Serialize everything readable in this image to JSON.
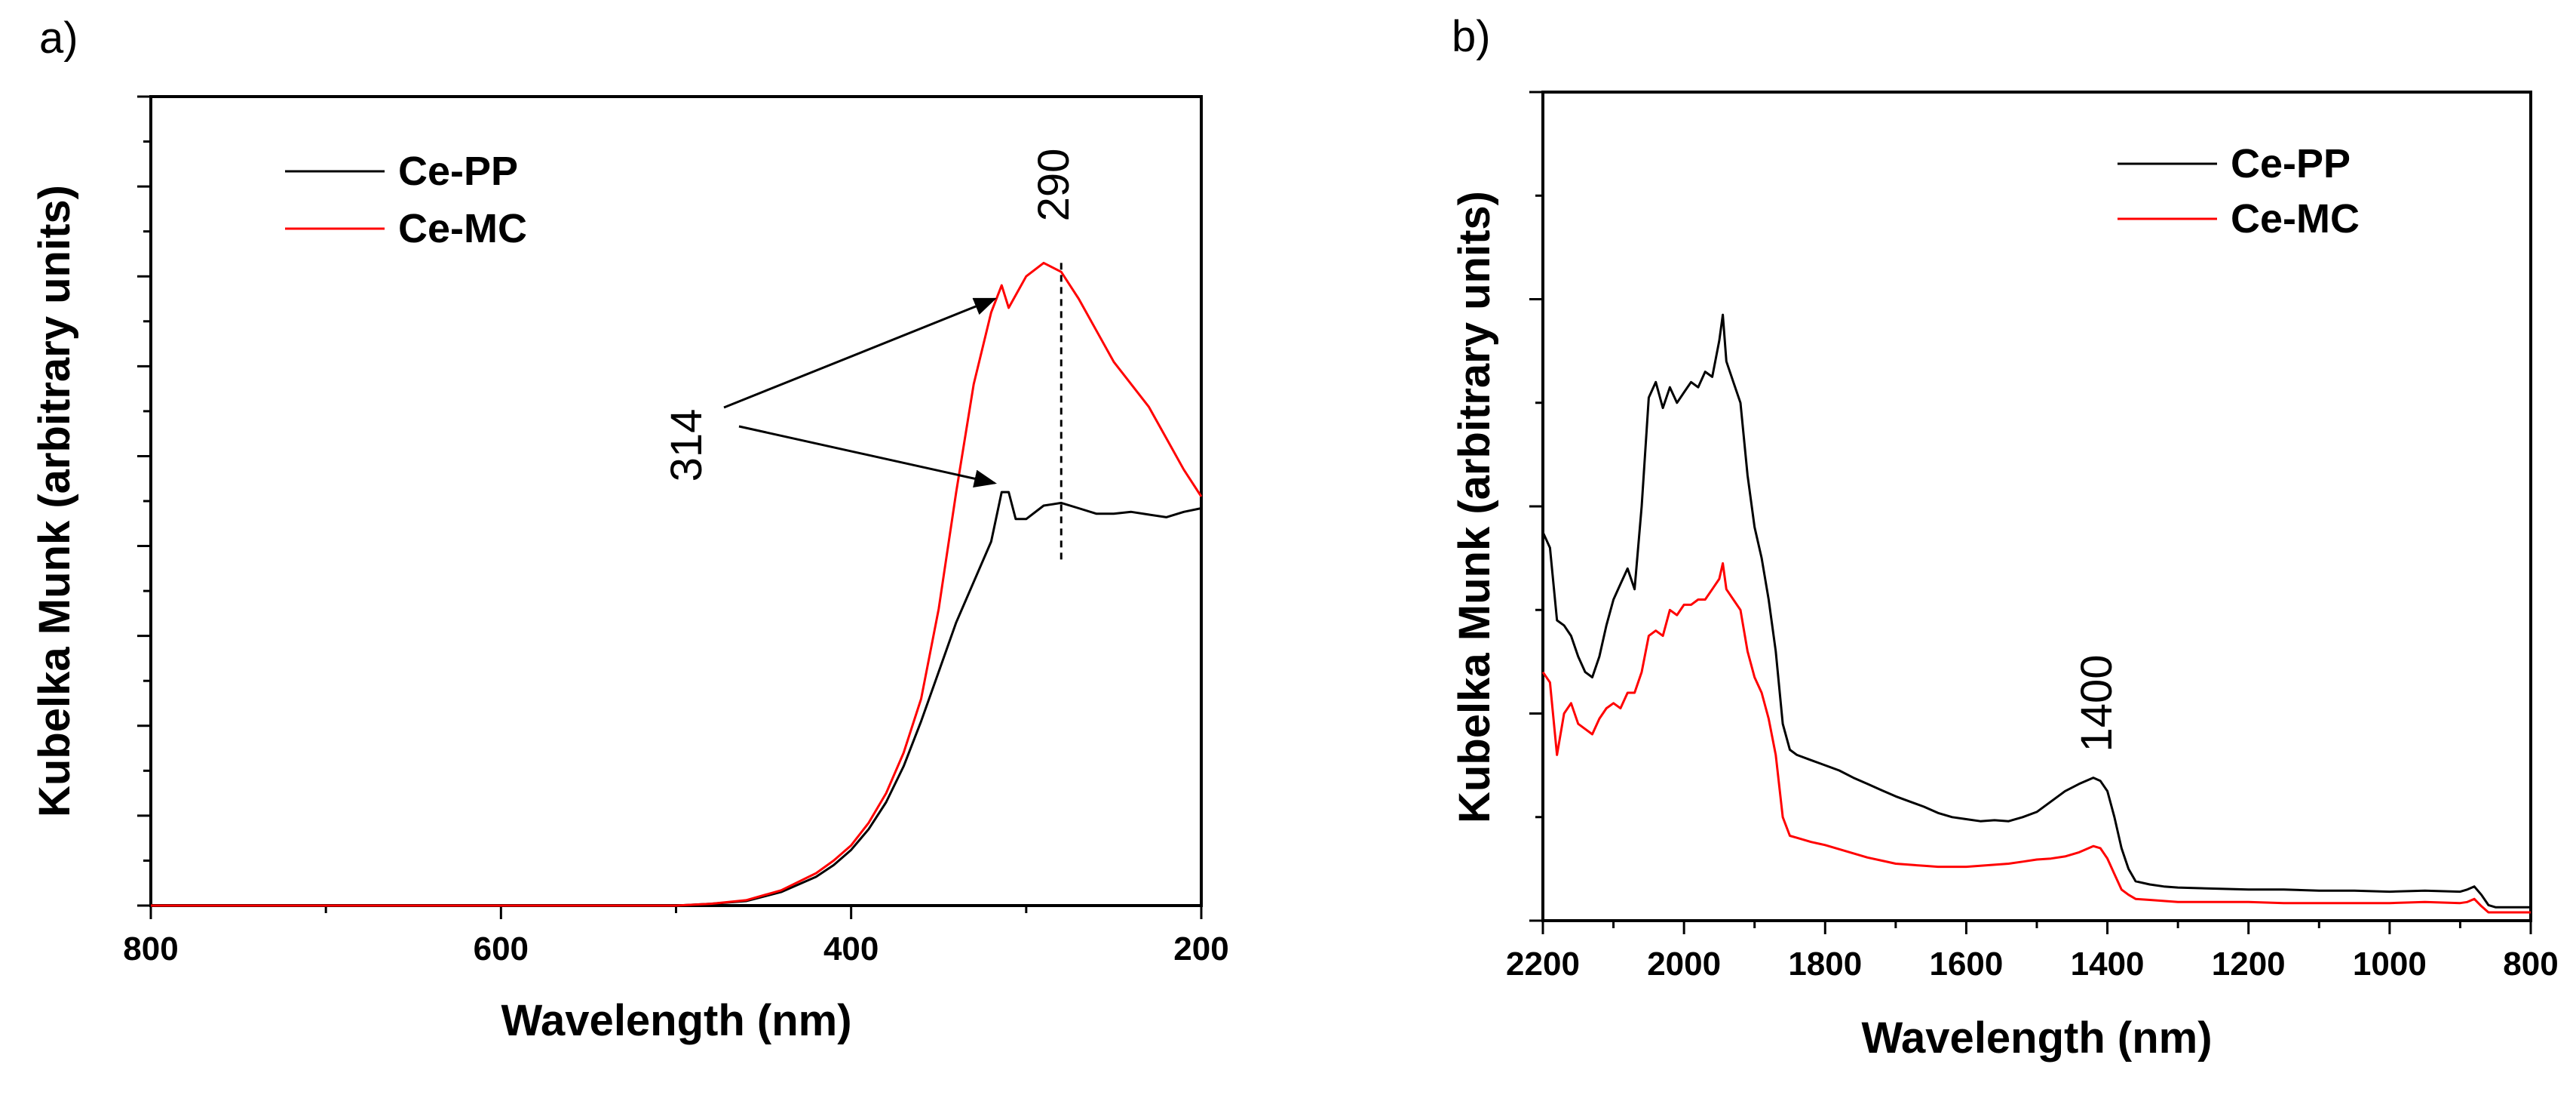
{
  "chart_data": [
    {
      "panel_label": "a)",
      "type": "line",
      "xlabel": "Wavelength (nm)",
      "ylabel": "Kubelka Munk (arbitrary units)",
      "xlim": [
        800,
        200
      ],
      "ylim": [
        0,
        9
      ],
      "xticks": [
        800,
        600,
        400,
        200
      ],
      "y_tick_labels": "none",
      "legend_position": "top-left",
      "series": [
        {
          "name": "Ce-PP",
          "color": "#000000",
          "x": [
            800,
            700,
            600,
            500,
            480,
            460,
            440,
            420,
            410,
            400,
            390,
            380,
            370,
            360,
            350,
            340,
            330,
            320,
            314,
            310,
            306,
            300,
            290,
            280,
            270,
            260,
            250,
            240,
            230,
            220,
            210,
            200
          ],
          "y": [
            0,
            0,
            0,
            0,
            0.02,
            0.05,
            0.15,
            0.32,
            0.45,
            0.62,
            0.85,
            1.15,
            1.55,
            2.05,
            2.6,
            3.15,
            3.6,
            4.05,
            4.6,
            4.6,
            4.3,
            4.3,
            4.45,
            4.48,
            4.42,
            4.36,
            4.36,
            4.38,
            4.35,
            4.32,
            4.38,
            4.42
          ]
        },
        {
          "name": "Ce-MC",
          "color": "#ff0000",
          "x": [
            800,
            700,
            600,
            500,
            480,
            460,
            440,
            420,
            410,
            400,
            390,
            380,
            370,
            360,
            350,
            340,
            330,
            320,
            314,
            310,
            300,
            290,
            280,
            270,
            260,
            250,
            240,
            230,
            220,
            210,
            200
          ],
          "y": [
            0,
            0,
            0,
            0,
            0.02,
            0.06,
            0.17,
            0.36,
            0.5,
            0.67,
            0.92,
            1.25,
            1.7,
            2.3,
            3.3,
            4.6,
            5.8,
            6.6,
            6.9,
            6.65,
            7.0,
            7.15,
            7.05,
            6.75,
            6.4,
            6.05,
            5.8,
            5.55,
            5.2,
            4.85,
            4.55
          ]
        }
      ],
      "annotations": [
        {
          "text": "314",
          "x": 314
        },
        {
          "text": "290",
          "x": 280
        }
      ]
    },
    {
      "panel_label": "b)",
      "type": "line",
      "xlabel": "Wavelength (nm)",
      "ylabel": "Kubelka Munk (arbitrary units)",
      "xlim": [
        2200,
        800
      ],
      "ylim": [
        0,
        8
      ],
      "xticks": [
        2200,
        2000,
        1800,
        1600,
        1400,
        1200,
        1000,
        800
      ],
      "y_tick_labels": "none",
      "legend_position": "top-right",
      "series": [
        {
          "name": "Ce-PP",
          "color": "#000000",
          "x": [
            2200,
            2190,
            2180,
            2170,
            2160,
            2150,
            2140,
            2130,
            2120,
            2110,
            2100,
            2090,
            2080,
            2070,
            2060,
            2050,
            2040,
            2030,
            2020,
            2010,
            2000,
            1990,
            1980,
            1970,
            1960,
            1950,
            1945,
            1940,
            1930,
            1920,
            1910,
            1900,
            1890,
            1880,
            1870,
            1860,
            1850,
            1840,
            1820,
            1800,
            1780,
            1760,
            1740,
            1720,
            1700,
            1680,
            1660,
            1640,
            1620,
            1600,
            1580,
            1560,
            1540,
            1520,
            1500,
            1480,
            1460,
            1440,
            1420,
            1410,
            1400,
            1390,
            1380,
            1370,
            1360,
            1340,
            1320,
            1300,
            1250,
            1200,
            1150,
            1100,
            1050,
            1000,
            950,
            900,
            890,
            880,
            870,
            860,
            850,
            800
          ],
          "y": [
            3.75,
            3.6,
            2.9,
            2.85,
            2.75,
            2.55,
            2.4,
            2.35,
            2.55,
            2.85,
            3.1,
            3.25,
            3.4,
            3.2,
            4.0,
            5.05,
            5.2,
            4.95,
            5.15,
            5.0,
            5.1,
            5.2,
            5.15,
            5.3,
            5.25,
            5.6,
            5.85,
            5.4,
            5.2,
            5.0,
            4.3,
            3.8,
            3.5,
            3.1,
            2.6,
            1.9,
            1.65,
            1.6,
            1.55,
            1.5,
            1.45,
            1.38,
            1.32,
            1.26,
            1.2,
            1.15,
            1.1,
            1.04,
            1.0,
            0.98,
            0.96,
            0.97,
            0.96,
            1.0,
            1.05,
            1.15,
            1.25,
            1.32,
            1.38,
            1.35,
            1.25,
            1.0,
            0.7,
            0.5,
            0.38,
            0.35,
            0.33,
            0.32,
            0.31,
            0.3,
            0.3,
            0.29,
            0.29,
            0.28,
            0.29,
            0.28,
            0.3,
            0.33,
            0.25,
            0.15,
            0.13,
            0.13
          ]
        },
        {
          "name": "Ce-MC",
          "color": "#ff0000",
          "x": [
            2200,
            2190,
            2180,
            2170,
            2160,
            2150,
            2140,
            2130,
            2120,
            2110,
            2100,
            2090,
            2080,
            2070,
            2060,
            2050,
            2040,
            2030,
            2020,
            2010,
            2000,
            1990,
            1980,
            1970,
            1960,
            1950,
            1945,
            1940,
            1930,
            1920,
            1910,
            1900,
            1890,
            1880,
            1870,
            1860,
            1850,
            1840,
            1820,
            1800,
            1780,
            1760,
            1740,
            1720,
            1700,
            1680,
            1660,
            1640,
            1620,
            1600,
            1580,
            1560,
            1540,
            1520,
            1500,
            1480,
            1460,
            1440,
            1420,
            1410,
            1400,
            1390,
            1380,
            1370,
            1360,
            1340,
            1320,
            1300,
            1250,
            1200,
            1150,
            1100,
            1050,
            1000,
            950,
            900,
            890,
            880,
            870,
            860,
            850,
            800
          ],
          "y": [
            2.4,
            2.3,
            1.6,
            2.0,
            2.1,
            1.9,
            1.85,
            1.8,
            1.95,
            2.05,
            2.1,
            2.05,
            2.2,
            2.2,
            2.4,
            2.75,
            2.8,
            2.75,
            3.0,
            2.95,
            3.05,
            3.05,
            3.1,
            3.1,
            3.2,
            3.3,
            3.45,
            3.2,
            3.1,
            3.0,
            2.6,
            2.35,
            2.2,
            1.95,
            1.6,
            1.0,
            0.82,
            0.8,
            0.76,
            0.73,
            0.69,
            0.65,
            0.61,
            0.58,
            0.55,
            0.54,
            0.53,
            0.52,
            0.52,
            0.52,
            0.53,
            0.54,
            0.55,
            0.57,
            0.59,
            0.6,
            0.62,
            0.66,
            0.72,
            0.7,
            0.6,
            0.45,
            0.3,
            0.25,
            0.21,
            0.2,
            0.19,
            0.18,
            0.18,
            0.18,
            0.17,
            0.17,
            0.17,
            0.17,
            0.18,
            0.17,
            0.18,
            0.21,
            0.14,
            0.08,
            0.08,
            0.08
          ]
        }
      ],
      "annotations": [
        {
          "text": "1400",
          "x": 1420
        }
      ]
    }
  ]
}
